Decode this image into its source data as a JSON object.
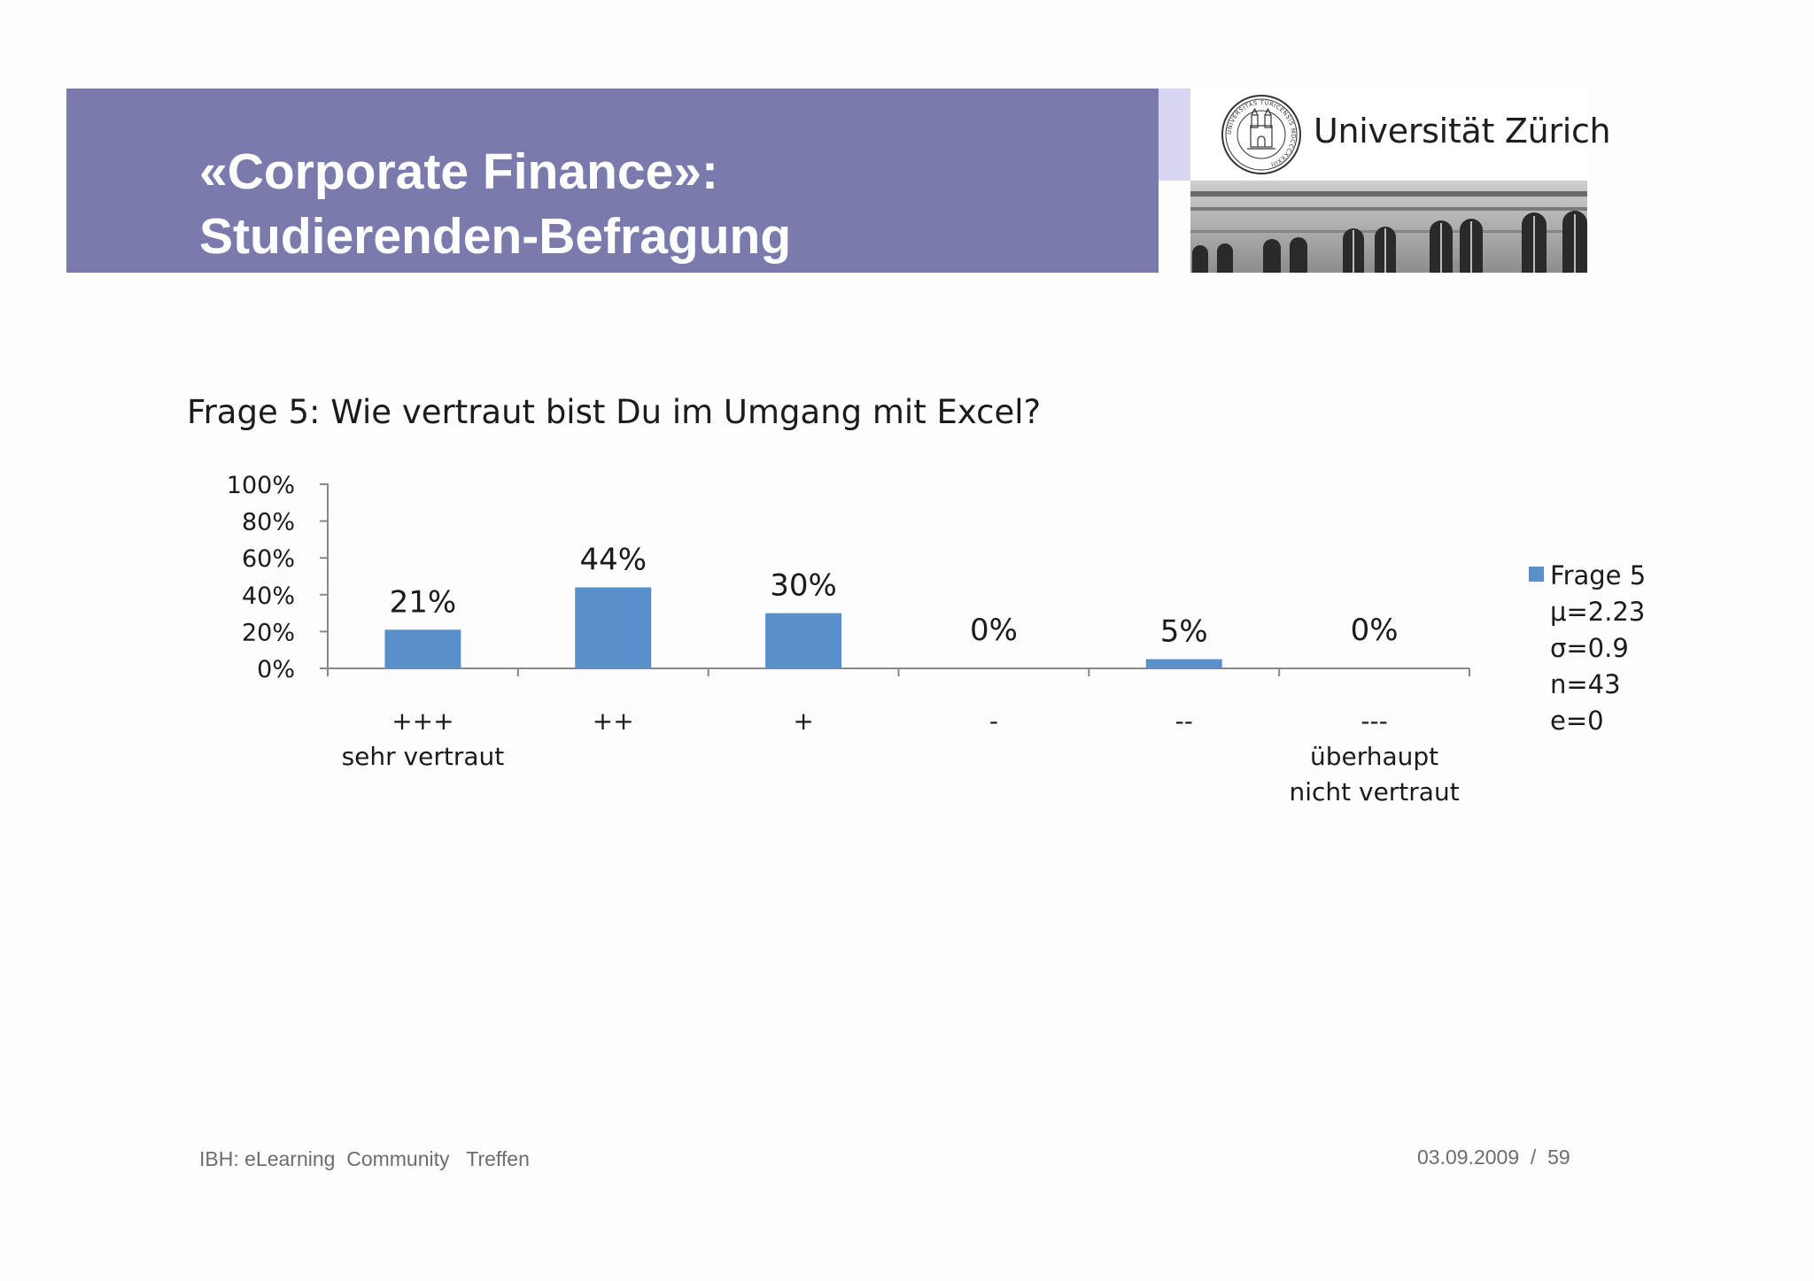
{
  "header": {
    "title_line1": "«Corporate Finance»:",
    "title_line2": "Studierenden-Befragung",
    "banner_color": "#7b7aad",
    "accent_color": "#d8d6f3",
    "logo_text": "Universität Zürich",
    "seal_text": "UNIVERSITAS TURICENSIS MDCCCXXXIII"
  },
  "chart_data": {
    "type": "bar",
    "title": "Frage 5: Wie vertraut bist Du im Umgang mit Excel?",
    "categories": [
      "+++\nsehr vertraut",
      "++",
      "+",
      "-",
      "--",
      "---\nüberhaupt\nnicht vertraut"
    ],
    "category_lines": [
      [
        "+++",
        "sehr vertraut"
      ],
      [
        "++"
      ],
      [
        "+"
      ],
      [
        "-"
      ],
      [
        "--"
      ],
      [
        "---",
        "überhaupt",
        "nicht vertraut"
      ]
    ],
    "series": [
      {
        "name": "Frage 5",
        "values": [
          21,
          44,
          30,
          0,
          5,
          0
        ],
        "color": "#5a8fcc"
      }
    ],
    "data_labels": [
      "21%",
      "44%",
      "30%",
      "0%",
      "5%",
      "0%"
    ],
    "y_ticks": [
      "0%",
      "20%",
      "40%",
      "60%",
      "80%",
      "100%"
    ],
    "ylim": [
      0,
      100
    ],
    "legend_position": "right",
    "stats": [
      "μ=2.23",
      "σ=0.9",
      "n=43",
      "e=0"
    ]
  },
  "footer": {
    "left": "IBH: eLearning  Community   Treffen",
    "right": "03.09.2009  /  59"
  }
}
